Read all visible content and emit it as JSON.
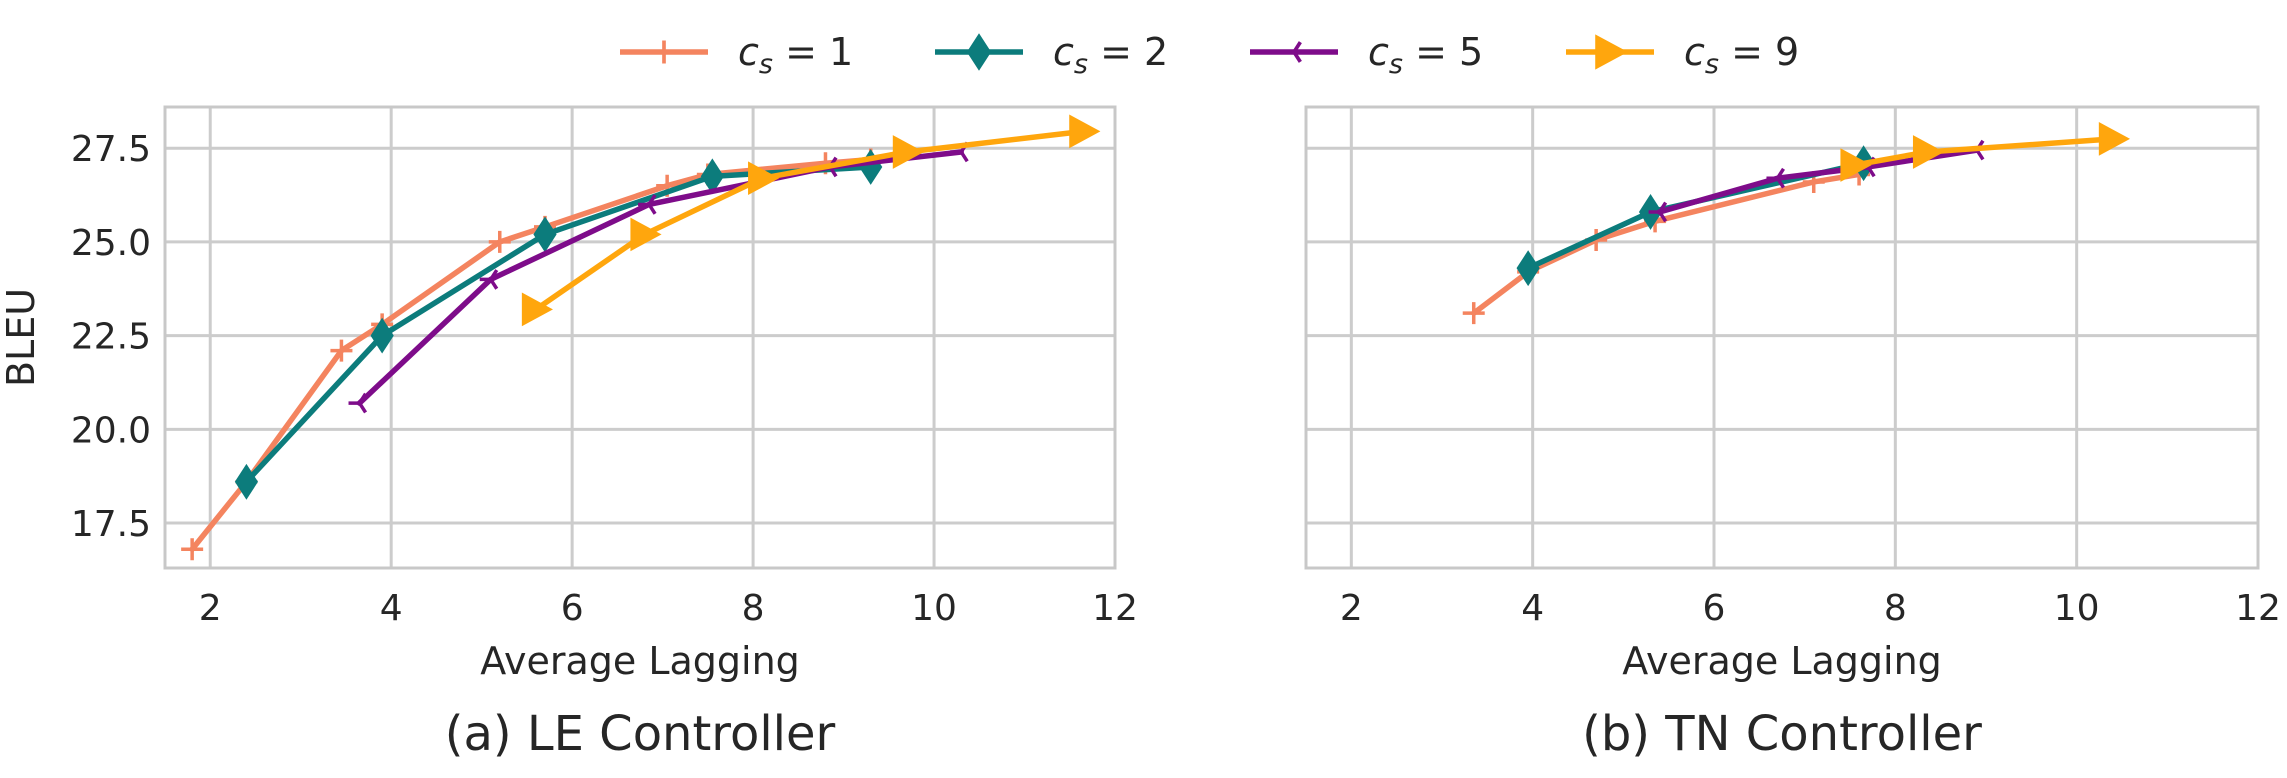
{
  "colors": {
    "cs1": "#F4845F",
    "cs2": "#0C7C7C",
    "cs5": "#7E0C8A",
    "cs9": "#FFA60D",
    "grid": "#cccccc",
    "text": "#262626"
  },
  "legend": {
    "position": "top-center",
    "entries": [
      {
        "var": "c",
        "sub": "s",
        "op": " = ",
        "val": "1",
        "marker": "plus",
        "color_key": "cs1"
      },
      {
        "var": "c",
        "sub": "s",
        "op": " = ",
        "val": "2",
        "marker": "diamond",
        "color_key": "cs2"
      },
      {
        "var": "c",
        "sub": "s",
        "op": " = ",
        "val": "5",
        "marker": "tri_left",
        "color_key": "cs5"
      },
      {
        "var": "c",
        "sub": "s",
        "op": " = ",
        "val": "9",
        "marker": "triangle_right",
        "color_key": "cs9"
      }
    ]
  },
  "chart_data": [
    {
      "type": "line",
      "subtitle": "(a) LE Controller",
      "xlabel": "Average Lagging",
      "ylabel": "BLEU",
      "xlim": [
        1.5,
        12
      ],
      "ylim": [
        16.3,
        28.6
      ],
      "xticks": [
        2,
        4,
        6,
        8,
        10,
        12
      ],
      "xtick_labels": [
        "2",
        "4",
        "6",
        "8",
        "10",
        "12"
      ],
      "yticks": [
        17.5,
        20.0,
        22.5,
        25.0,
        27.5
      ],
      "ytick_labels": [
        "17.5",
        "20.0",
        "22.5",
        "25.0",
        "27.5"
      ],
      "grid": true,
      "series": [
        {
          "name": "cs=1",
          "x": [
            1.8,
            2.4,
            3.45,
            3.9,
            5.2,
            5.7,
            7.05,
            7.5,
            8.8,
            9.3
          ],
          "y": [
            16.8,
            18.6,
            22.1,
            22.8,
            25.0,
            25.4,
            26.5,
            26.8,
            27.1,
            27.2
          ]
        },
        {
          "name": "cs=2",
          "x": [
            2.4,
            3.9,
            5.7,
            7.55,
            9.3
          ],
          "y": [
            18.6,
            22.5,
            25.2,
            26.75,
            27.0
          ]
        },
        {
          "name": "cs=5",
          "x": [
            3.65,
            5.1,
            6.85,
            8.85,
            10.3
          ],
          "y": [
            20.7,
            24.0,
            26.0,
            27.0,
            27.4
          ]
        },
        {
          "name": "cs=9",
          "x": [
            5.6,
            6.8,
            8.1,
            9.7,
            11.65
          ],
          "y": [
            23.2,
            25.2,
            26.7,
            27.4,
            27.95
          ]
        }
      ]
    },
    {
      "type": "line",
      "subtitle": "(b) TN Controller",
      "xlabel": "Average Lagging",
      "ylabel": "",
      "xlim": [
        1.5,
        12
      ],
      "ylim": [
        16.3,
        28.6
      ],
      "xticks": [
        2,
        4,
        6,
        8,
        10,
        12
      ],
      "xtick_labels": [
        "2",
        "4",
        "6",
        "8",
        "10",
        "12"
      ],
      "yticks": [
        17.5,
        20.0,
        22.5,
        25.0,
        27.5
      ],
      "ytick_labels": [],
      "grid": true,
      "series": [
        {
          "name": "cs=1",
          "x": [
            3.35,
            3.95,
            4.7,
            5.35,
            7.1,
            7.6
          ],
          "y": [
            23.1,
            24.2,
            25.05,
            25.55,
            26.6,
            26.8
          ]
        },
        {
          "name": "cs=2",
          "x": [
            3.95,
            5.3,
            7.65
          ],
          "y": [
            24.3,
            25.8,
            27.1
          ]
        },
        {
          "name": "cs=5",
          "x": [
            5.4,
            6.7,
            7.7,
            8.9
          ],
          "y": [
            25.8,
            26.7,
            27.0,
            27.45
          ]
        },
        {
          "name": "cs=9",
          "x": [
            7.55,
            8.35,
            10.4
          ],
          "y": [
            27.05,
            27.4,
            27.75
          ]
        }
      ]
    }
  ]
}
